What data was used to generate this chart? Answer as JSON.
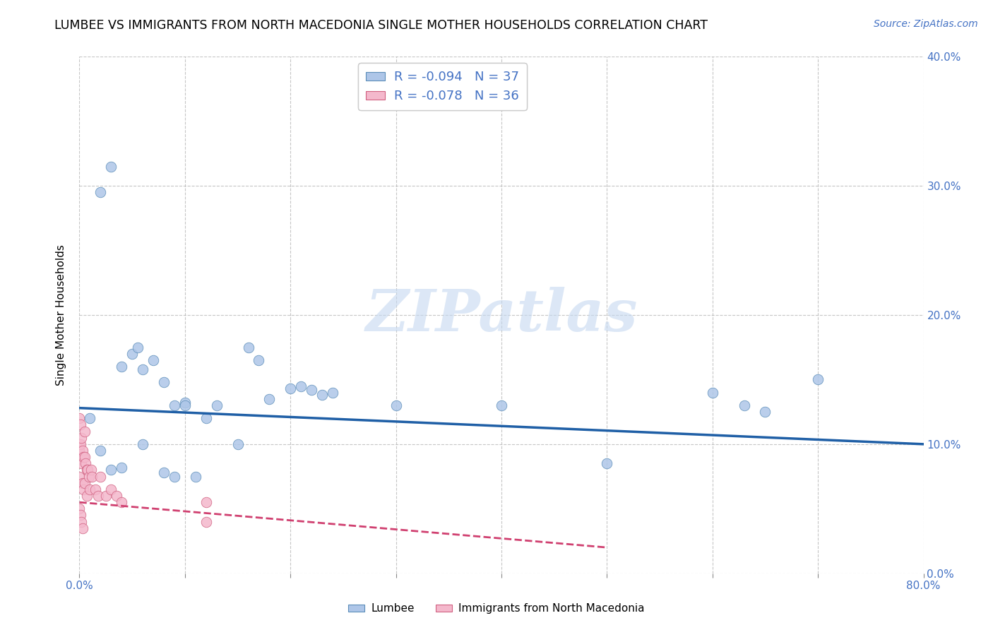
{
  "title": "LUMBEE VS IMMIGRANTS FROM NORTH MACEDONIA SINGLE MOTHER HOUSEHOLDS CORRELATION CHART",
  "source": "Source: ZipAtlas.com",
  "ylabel": "Single Mother Households",
  "xlim": [
    0,
    0.8
  ],
  "ylim": [
    0,
    0.4
  ],
  "lumbee_R": -0.094,
  "lumbee_N": 37,
  "macedonia_R": -0.078,
  "macedonia_N": 36,
  "lumbee_color": "#aec6e8",
  "lumbee_edge_color": "#5b8db8",
  "lumbee_line_color": "#1f5fa6",
  "macedonia_color": "#f4b8cc",
  "macedonia_edge_color": "#d06080",
  "macedonia_line_color": "#d04070",
  "watermark_color": "#c5d8f0",
  "legend_text_color": "#4472c4",
  "axis_label_color": "#4472c4",
  "lumbee_x": [
    0.01,
    0.02,
    0.03,
    0.04,
    0.05,
    0.055,
    0.06,
    0.07,
    0.08,
    0.09,
    0.1,
    0.11,
    0.12,
    0.13,
    0.15,
    0.16,
    0.17,
    0.18,
    0.2,
    0.21,
    0.22,
    0.23,
    0.24,
    0.3,
    0.4,
    0.5,
    0.6,
    0.63,
    0.65,
    0.7,
    0.02,
    0.03,
    0.04,
    0.06,
    0.08,
    0.09,
    0.1
  ],
  "lumbee_y": [
    0.12,
    0.295,
    0.315,
    0.16,
    0.17,
    0.175,
    0.158,
    0.165,
    0.148,
    0.13,
    0.132,
    0.075,
    0.12,
    0.13,
    0.1,
    0.175,
    0.165,
    0.135,
    0.143,
    0.145,
    0.142,
    0.138,
    0.14,
    0.13,
    0.13,
    0.085,
    0.14,
    0.13,
    0.125,
    0.15,
    0.095,
    0.08,
    0.082,
    0.1,
    0.078,
    0.075,
    0.13
  ],
  "macedonia_x": [
    0.0,
    0.0,
    0.0,
    0.0,
    0.001,
    0.001,
    0.002,
    0.002,
    0.003,
    0.003,
    0.004,
    0.004,
    0.005,
    0.005,
    0.005,
    0.006,
    0.007,
    0.007,
    0.008,
    0.009,
    0.01,
    0.011,
    0.012,
    0.015,
    0.018,
    0.02,
    0.025,
    0.03,
    0.035,
    0.04,
    0.0,
    0.001,
    0.002,
    0.003,
    0.12,
    0.12
  ],
  "macedonia_y": [
    0.12,
    0.1,
    0.095,
    0.075,
    0.115,
    0.1,
    0.105,
    0.085,
    0.095,
    0.07,
    0.09,
    0.065,
    0.11,
    0.09,
    0.07,
    0.085,
    0.08,
    0.06,
    0.08,
    0.075,
    0.065,
    0.08,
    0.075,
    0.065,
    0.06,
    0.075,
    0.06,
    0.065,
    0.06,
    0.055,
    0.05,
    0.045,
    0.04,
    0.035,
    0.055,
    0.04
  ],
  "lumbee_trend_x0": 0.0,
  "lumbee_trend_x1": 0.8,
  "lumbee_trend_y0": 0.128,
  "lumbee_trend_y1": 0.1,
  "macedonia_trend_x0": 0.0,
  "macedonia_trend_x1": 0.5,
  "macedonia_trend_y0": 0.055,
  "macedonia_trend_y1": 0.02
}
